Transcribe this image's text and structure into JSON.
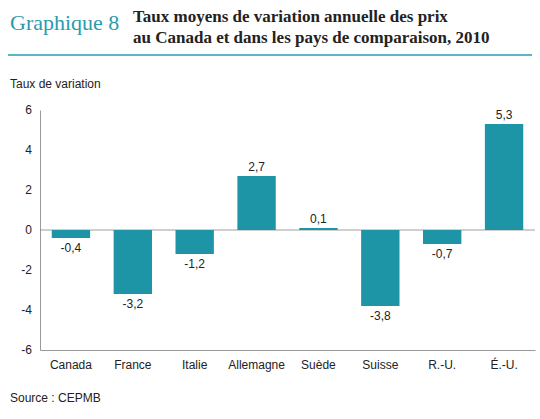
{
  "chart_data": {
    "type": "bar",
    "figure_label": "Graphique 8",
    "title": [
      "Taux moyens de variation annuelle des prix",
      "au Canada et dans les pays de comparaison, 2010"
    ],
    "y_label": "Taux de variation",
    "source": "Source : CEPMB",
    "categories": [
      "Canada",
      "France",
      "Italie",
      "Allemagne",
      "Suède",
      "Suisse",
      "R.-U.",
      "É.-U."
    ],
    "values": [
      -0.4,
      -3.2,
      -1.2,
      2.7,
      0.1,
      -3.8,
      -0.7,
      5.3
    ],
    "value_labels": [
      "-0,4",
      "-3,2",
      "-1,2",
      "2,7",
      "0,1",
      "-3,8",
      "-0,7",
      "5,3"
    ],
    "data_labels": true,
    "color": "#1d95a6",
    "ylim": [
      -6,
      6
    ],
    "yticks": [
      -6,
      -4,
      -2,
      0,
      2,
      4,
      6
    ],
    "grid": false
  }
}
